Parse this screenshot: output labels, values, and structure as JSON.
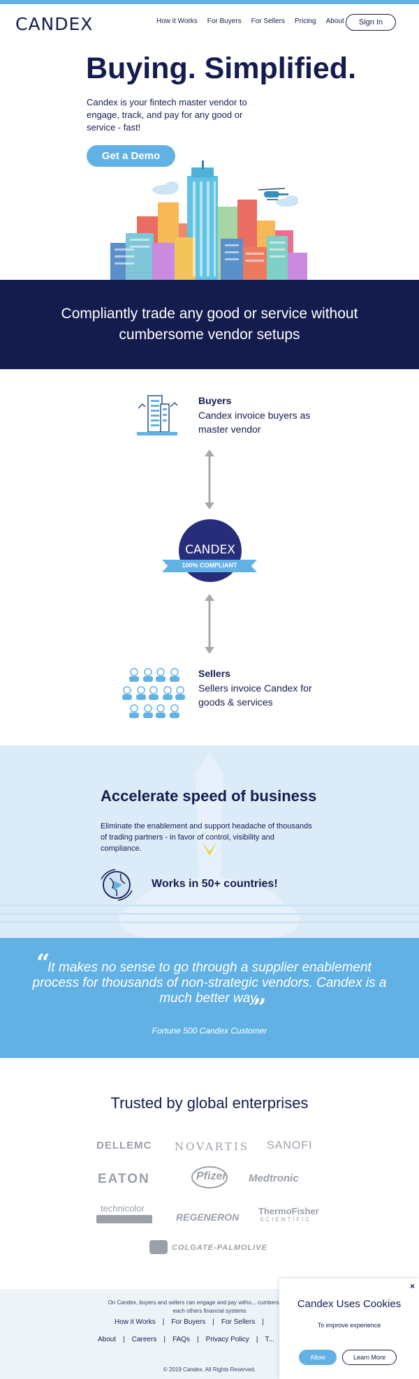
{
  "header": {
    "logo": "CANDEX",
    "nav": [
      "How it Works",
      "For Buyers",
      "For Sellers",
      "Pricing",
      "About"
    ],
    "sign_in": "Sign In"
  },
  "hero": {
    "title": "Buying. Simplified.",
    "subtitle": "Candex is your fintech master vendor to engage, track, and pay for any good or service - fast!",
    "cta": "Get a Demo"
  },
  "banner": {
    "text": "Compliantly trade any good or service without cumbersome vendor setups"
  },
  "flow": {
    "buyers_title": "Buyers",
    "buyers_desc": "Candex invoice buyers as master vendor",
    "badge_logo": "CANDEX",
    "badge_ribbon": "100% COMPLIANT",
    "sellers_title": "Sellers",
    "sellers_desc": "Sellers invoice Candex for goods & services"
  },
  "accelerate": {
    "title": "Accelerate speed of business",
    "text": "Eliminate the enablement and support headache of thousands of trading partners - in favor of control, visibility and compliance.",
    "countries": "Works in 50+ countries!"
  },
  "quote": {
    "text": "It makes no sense to go through a supplier enablement process for thousands of non-strategic vendors. Candex is a much better way.",
    "source": "Fortune 500 Candex Customer"
  },
  "trusted": {
    "title": "Trusted by global enterprises",
    "brands": {
      "dell": "DELLEMC",
      "novartis": "NOVARTIS",
      "sanofi": "SANOFI",
      "eaton": "EATON",
      "pfizer": "Pfizer",
      "medtronic": "Medtronic",
      "technicolor": "technicolor",
      "regeneron": "REGENERON",
      "thermo1": "ThermoFisher",
      "thermo2": "SCIENTIFIC",
      "colgate": "COLGATE-PALMOLIVE"
    }
  },
  "footer": {
    "description": "On Candex, buyers and sellers can engage and pay witho... cumbersome setup in each others financial systems",
    "row1": [
      "How it Works",
      "For Buyers",
      "For Sellers"
    ],
    "row2": [
      "About",
      "Careers",
      "FAQs",
      "Privacy Policy",
      "T..."
    ],
    "copyright": "© 2019 Candex. All Rights Reserved."
  },
  "cookie": {
    "title": "Candex Uses Cookies",
    "subtitle": "To improve experience",
    "allow": "Allow",
    "learn_more": "Learn More",
    "close": "×"
  },
  "colors": {
    "navy": "#141c4d",
    "sky": "#62b1e4",
    "pale": "#dcebf8"
  }
}
